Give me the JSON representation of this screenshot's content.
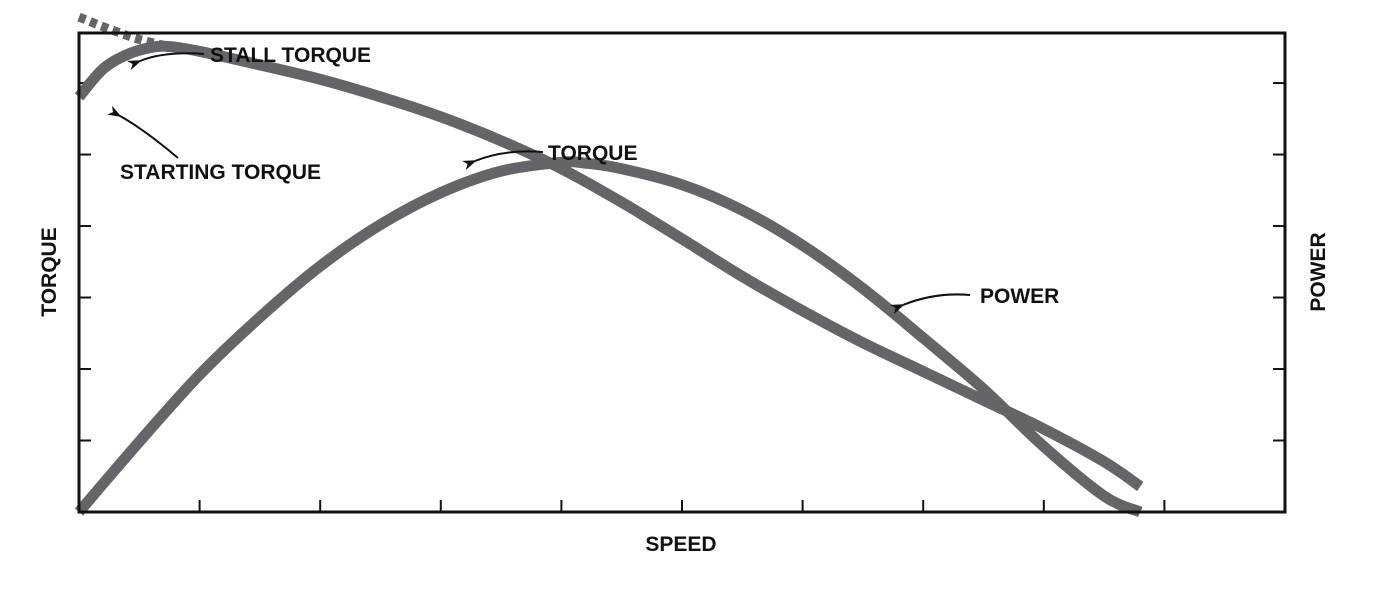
{
  "chart_data": {
    "type": "line",
    "title": "",
    "xlabel": "SPEED",
    "ylabel": "TORQUE",
    "y2label": "POWER",
    "xlim": [
      0,
      10
    ],
    "ylim": [
      0,
      6
    ],
    "grid": false,
    "legend": "none",
    "series": [
      {
        "name": "TORQUE",
        "axis": "left",
        "x": [
          0,
          0.2,
          0.4,
          0.6,
          0.75,
          1.0,
          1.5,
          2.0,
          2.5,
          3.0,
          3.5,
          4.0,
          4.5,
          5.0,
          5.5,
          6.0,
          6.5,
          7.0,
          7.5,
          8.0,
          8.5,
          8.8
        ],
        "y": [
          5.2,
          5.55,
          5.73,
          5.82,
          5.83,
          5.77,
          5.6,
          5.42,
          5.2,
          4.95,
          4.65,
          4.3,
          3.88,
          3.42,
          2.95,
          2.52,
          2.12,
          1.76,
          1.4,
          1.04,
          0.63,
          0.32
        ]
      },
      {
        "name": "STALL TORQUE",
        "axis": "left",
        "style": "dashed",
        "x": [
          0,
          0.25,
          0.5,
          0.75
        ],
        "y": [
          6.2,
          6.05,
          5.92,
          5.83
        ]
      },
      {
        "name": "POWER",
        "axis": "right",
        "x": [
          0,
          0.5,
          1.0,
          1.5,
          2.0,
          2.5,
          3.0,
          3.5,
          4.0,
          4.2,
          4.5,
          5.0,
          5.5,
          6.0,
          6.5,
          7.0,
          7.5,
          8.0,
          8.5,
          8.8
        ],
        "y": [
          0,
          0.88,
          1.72,
          2.44,
          3.08,
          3.6,
          4.0,
          4.27,
          4.38,
          4.37,
          4.3,
          4.1,
          3.78,
          3.34,
          2.8,
          2.18,
          1.54,
          0.82,
          0.2,
          0
        ]
      }
    ],
    "annotations": [
      {
        "id": "stall",
        "text": "STALL TORQUE"
      },
      {
        "id": "starting",
        "text": "STARTING TORQUE"
      },
      {
        "id": "torque",
        "text": "TORQUE"
      },
      {
        "id": "power",
        "text": "POWER"
      }
    ],
    "colors": {
      "curve": "#646569",
      "frame": "#111111",
      "text": "#111111"
    }
  }
}
